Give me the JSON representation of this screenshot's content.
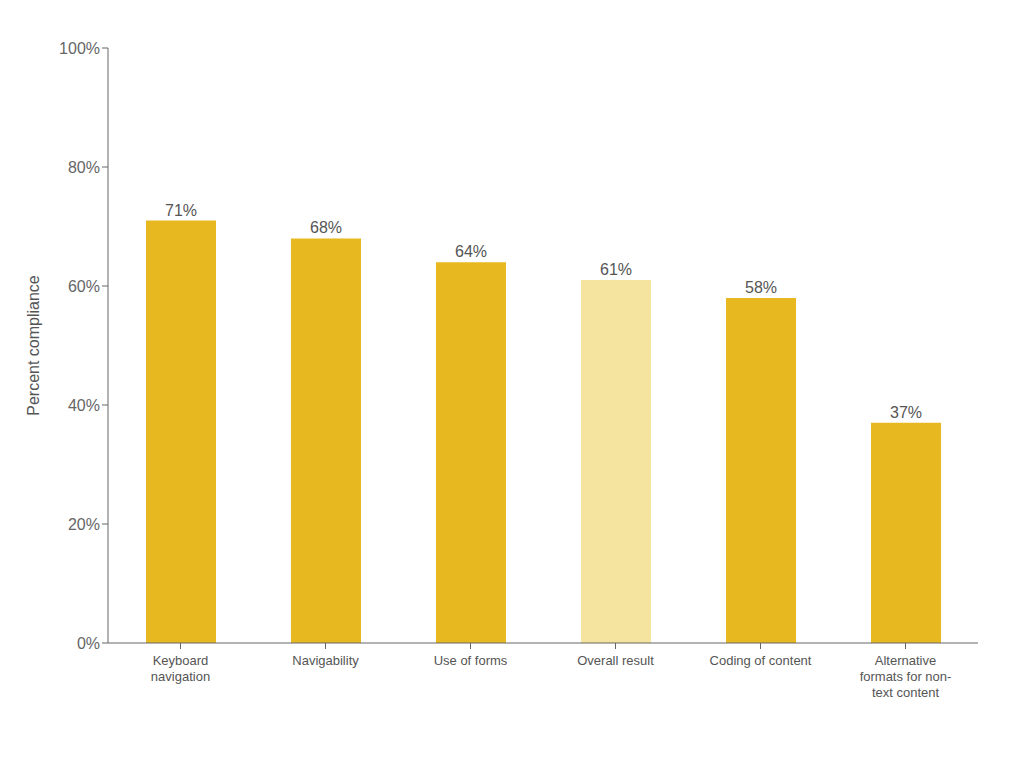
{
  "chart_data": {
    "type": "bar",
    "categories": [
      "Keyboard\nnavigation",
      "Navigability",
      "Use of forms",
      "Overall result",
      "Coding of content",
      "Alternative\nformats for non-\ntext content"
    ],
    "values": [
      71,
      68,
      64,
      61,
      58,
      37
    ],
    "value_labels": [
      "71%",
      "68%",
      "64%",
      "61%",
      "58%",
      "37%"
    ],
    "colors": [
      "#E8B820",
      "#E8B820",
      "#E8B820",
      "#F5E4A0",
      "#E8B820",
      "#E8B820"
    ],
    "ylabel": "Percent compliance",
    "ylim": [
      0,
      100
    ],
    "yticks": [
      {
        "value": 0,
        "label": "0%"
      },
      {
        "value": 20,
        "label": "20%"
      },
      {
        "value": 40,
        "label": "40%"
      },
      {
        "value": 60,
        "label": "60%"
      },
      {
        "value": 80,
        "label": "80%"
      },
      {
        "value": 100,
        "label": "100%"
      }
    ],
    "grid": false,
    "data_labels": true
  }
}
